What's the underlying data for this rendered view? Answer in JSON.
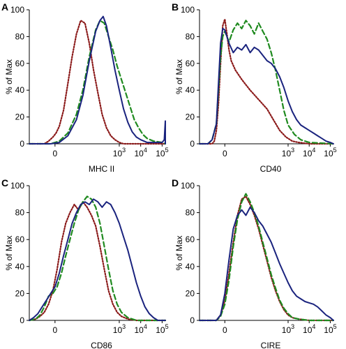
{
  "colors": {
    "isotype": "#8b1a1a",
    "treated": "#1f8a1f",
    "control": "#1a237e"
  },
  "chart_data": [
    {
      "type": "line",
      "panel": "A",
      "xlabel": "MHC II",
      "ylabel": "% of Max",
      "ylim": [
        0,
        100
      ],
      "yticks": [
        0,
        20,
        40,
        60,
        80,
        100
      ],
      "xlim": [
        -1.2,
        5.15
      ],
      "xticks": [
        {
          "pos": 0,
          "base": "0",
          "exp": ""
        },
        {
          "pos": 3,
          "base": "10",
          "exp": "3"
        },
        {
          "pos": 4,
          "base": "10",
          "exp": "4"
        },
        {
          "pos": 5,
          "base": "10",
          "exp": "5"
        }
      ],
      "series": [
        {
          "style": "isotype",
          "x": [
            -1.2,
            -0.5,
            -0.3,
            -0.1,
            0.05,
            0.2,
            0.4,
            0.6,
            0.8,
            1.0,
            1.2,
            1.4,
            1.6,
            1.8,
            2.0,
            2.2,
            2.4,
            2.6,
            2.8,
            3.0,
            3.2,
            3.5,
            4.0,
            5.15
          ],
          "y": [
            0,
            0,
            2,
            5,
            8,
            13,
            25,
            45,
            65,
            82,
            92,
            90,
            75,
            55,
            38,
            22,
            12,
            6,
            3,
            1,
            0,
            0,
            0,
            0
          ]
        },
        {
          "style": "treated",
          "x": [
            -1.2,
            -0.2,
            0.2,
            0.6,
            1.0,
            1.3,
            1.6,
            1.9,
            2.1,
            2.3,
            2.5,
            2.7,
            2.9,
            3.1,
            3.3,
            3.5,
            3.7,
            3.9,
            4.1,
            4.3,
            4.6,
            5.0,
            5.15
          ],
          "y": [
            0,
            0,
            2,
            8,
            22,
            40,
            65,
            85,
            92,
            90,
            80,
            70,
            58,
            48,
            38,
            28,
            18,
            12,
            7,
            4,
            2,
            1,
            0
          ]
        },
        {
          "style": "control",
          "x": [
            -1.2,
            -0.2,
            0.2,
            0.6,
            1.0,
            1.3,
            1.6,
            1.9,
            2.1,
            2.25,
            2.4,
            2.6,
            2.8,
            3.0,
            3.2,
            3.4,
            3.6,
            3.8,
            4.0,
            4.3,
            4.6,
            5.0,
            5.1,
            5.15,
            5.15
          ],
          "y": [
            0,
            0,
            1,
            6,
            18,
            36,
            62,
            84,
            92,
            95,
            88,
            72,
            55,
            40,
            26,
            16,
            9,
            5,
            3,
            1,
            1,
            1,
            3,
            17,
            0
          ]
        }
      ]
    },
    {
      "type": "line",
      "panel": "B",
      "xlabel": "CD40",
      "ylabel": "% of Max",
      "ylim": [
        0,
        100
      ],
      "yticks": [
        0,
        20,
        40,
        60,
        80,
        100
      ],
      "xlim": [
        -1.2,
        5.15
      ],
      "xticks": [
        {
          "pos": 0,
          "base": "0",
          "exp": ""
        },
        {
          "pos": 3,
          "base": "10",
          "exp": "3"
        },
        {
          "pos": 4,
          "base": "10",
          "exp": "4"
        },
        {
          "pos": 5,
          "base": "10",
          "exp": "5"
        }
      ],
      "series": [
        {
          "style": "isotype",
          "x": [
            -1.2,
            -0.6,
            -0.5,
            -0.4,
            -0.3,
            -0.2,
            -0.1,
            0,
            0.1,
            0.2,
            0.3,
            0.5,
            0.8,
            1.2,
            1.6,
            2.0,
            2.3,
            2.6,
            2.9,
            3.2,
            3.5,
            4.0,
            5.15
          ],
          "y": [
            0,
            0,
            2,
            10,
            30,
            60,
            88,
            93,
            82,
            70,
            62,
            55,
            48,
            40,
            33,
            26,
            18,
            10,
            5,
            2,
            1,
            0,
            0
          ]
        },
        {
          "style": "treated",
          "x": [
            -1.2,
            -0.8,
            -0.6,
            -0.4,
            -0.3,
            -0.2,
            -0.1,
            0,
            0.2,
            0.4,
            0.6,
            0.8,
            1.0,
            1.2,
            1.4,
            1.6,
            1.8,
            2.0,
            2.2,
            2.4,
            2.6,
            2.8,
            3.0,
            3.3,
            3.6,
            4.0,
            5.15
          ],
          "y": [
            0,
            0,
            3,
            15,
            40,
            65,
            80,
            84,
            76,
            85,
            90,
            86,
            92,
            88,
            82,
            90,
            84,
            78,
            68,
            55,
            40,
            25,
            14,
            7,
            3,
            1,
            0
          ]
        },
        {
          "style": "control",
          "x": [
            -1.2,
            -0.8,
            -0.6,
            -0.4,
            -0.3,
            -0.2,
            -0.1,
            0,
            0.2,
            0.4,
            0.6,
            0.8,
            1.0,
            1.2,
            1.4,
            1.6,
            1.8,
            2.0,
            2.2,
            2.4,
            2.6,
            2.8,
            3.0,
            3.2,
            3.4,
            3.6,
            3.8,
            4.0,
            4.2,
            4.4,
            4.6,
            4.8,
            5.0,
            5.15
          ],
          "y": [
            0,
            0,
            3,
            15,
            45,
            75,
            86,
            85,
            75,
            68,
            72,
            70,
            74,
            68,
            72,
            70,
            66,
            62,
            60,
            56,
            50,
            42,
            32,
            24,
            18,
            14,
            12,
            10,
            8,
            6,
            4,
            2,
            1,
            0
          ]
        }
      ]
    },
    {
      "type": "line",
      "panel": "C",
      "xlabel": "CD86",
      "ylabel": "% of Max",
      "ylim": [
        0,
        100
      ],
      "yticks": [
        0,
        20,
        40,
        60,
        80,
        100
      ],
      "xlim": [
        -1.2,
        5.15
      ],
      "xticks": [
        {
          "pos": 0,
          "base": "0",
          "exp": ""
        },
        {
          "pos": 3,
          "base": "10",
          "exp": "3"
        },
        {
          "pos": 4,
          "base": "10",
          "exp": "4"
        },
        {
          "pos": 5,
          "base": "10",
          "exp": "5"
        }
      ],
      "series": [
        {
          "style": "isotype",
          "x": [
            -1.2,
            -0.9,
            -0.7,
            -0.5,
            -0.3,
            -0.1,
            0.1,
            0.3,
            0.5,
            0.7,
            0.9,
            1.1,
            1.3,
            1.5,
            1.7,
            1.9,
            2.1,
            2.3,
            2.5,
            2.7,
            2.9,
            3.1,
            3.4,
            3.8,
            5.15
          ],
          "y": [
            0,
            1,
            3,
            6,
            12,
            22,
            38,
            58,
            72,
            80,
            86,
            82,
            88,
            84,
            78,
            70,
            55,
            38,
            22,
            12,
            6,
            3,
            1,
            0,
            0
          ]
        },
        {
          "style": "treated",
          "x": [
            -1.2,
            -0.9,
            -0.7,
            -0.5,
            -0.3,
            -0.1,
            0.1,
            0.3,
            0.5,
            0.7,
            0.9,
            1.1,
            1.3,
            1.5,
            1.7,
            1.9,
            2.1,
            2.3,
            2.5,
            2.7,
            2.9,
            3.1,
            3.4,
            3.8,
            5.15
          ],
          "y": [
            0,
            1,
            4,
            10,
            18,
            20,
            25,
            35,
            48,
            60,
            72,
            82,
            88,
            92,
            90,
            84,
            72,
            55,
            38,
            22,
            12,
            6,
            2,
            0,
            0
          ]
        },
        {
          "style": "control",
          "x": [
            -1.2,
            -1.0,
            -0.8,
            -0.6,
            -0.4,
            -0.2,
            0,
            0.2,
            0.4,
            0.6,
            0.8,
            1.0,
            1.2,
            1.4,
            1.6,
            1.8,
            2.0,
            2.2,
            2.4,
            2.6,
            2.8,
            3.0,
            3.2,
            3.4,
            3.6,
            3.8,
            4.0,
            4.2,
            4.4,
            4.6,
            4.8,
            5.15
          ],
          "y": [
            0,
            2,
            5,
            10,
            15,
            20,
            25,
            35,
            48,
            60,
            72,
            80,
            86,
            88,
            86,
            90,
            88,
            84,
            88,
            86,
            80,
            72,
            62,
            52,
            40,
            28,
            18,
            10,
            5,
            2,
            0,
            0
          ]
        }
      ]
    },
    {
      "type": "line",
      "panel": "D",
      "xlabel": "CIRE",
      "ylabel": "% of Max",
      "ylim": [
        0,
        100
      ],
      "yticks": [
        0,
        20,
        40,
        60,
        80,
        100
      ],
      "xlim": [
        -1.2,
        5.15
      ],
      "xticks": [
        {
          "pos": 0,
          "base": "0",
          "exp": ""
        },
        {
          "pos": 3,
          "base": "10",
          "exp": "3"
        },
        {
          "pos": 4,
          "base": "10",
          "exp": "4"
        },
        {
          "pos": 5,
          "base": "10",
          "exp": "5"
        }
      ],
      "series": [
        {
          "style": "isotype",
          "x": [
            -1.2,
            -0.4,
            -0.2,
            0,
            0.2,
            0.4,
            0.6,
            0.8,
            1.0,
            1.2,
            1.4,
            1.6,
            1.8,
            2.0,
            2.2,
            2.4,
            2.6,
            2.8,
            3.0,
            3.2,
            3.5,
            4.0,
            5.15
          ],
          "y": [
            0,
            0,
            4,
            15,
            35,
            58,
            78,
            90,
            92,
            86,
            78,
            68,
            56,
            44,
            32,
            22,
            14,
            8,
            4,
            2,
            1,
            0,
            0
          ]
        },
        {
          "style": "treated",
          "x": [
            -1.2,
            -0.4,
            -0.2,
            0,
            0.2,
            0.4,
            0.6,
            0.8,
            1.0,
            1.2,
            1.4,
            1.6,
            1.8,
            2.0,
            2.2,
            2.4,
            2.6,
            2.8,
            3.0,
            3.2,
            3.5,
            4.0,
            5.15
          ],
          "y": [
            0,
            0,
            3,
            12,
            30,
            55,
            75,
            88,
            94,
            88,
            80,
            70,
            58,
            46,
            34,
            24,
            15,
            9,
            5,
            2,
            1,
            0,
            0
          ]
        },
        {
          "style": "control",
          "x": [
            -1.2,
            -0.4,
            -0.2,
            0,
            0.2,
            0.4,
            0.6,
            0.8,
            1.0,
            1.2,
            1.4,
            1.6,
            1.8,
            2.0,
            2.2,
            2.4,
            2.6,
            2.8,
            3.0,
            3.2,
            3.4,
            3.6,
            3.8,
            4.0,
            4.2,
            4.4,
            4.6,
            4.8,
            5.0,
            5.15
          ],
          "y": [
            0,
            0,
            4,
            20,
            45,
            68,
            78,
            82,
            78,
            84,
            80,
            74,
            70,
            64,
            58,
            50,
            42,
            35,
            28,
            22,
            18,
            16,
            14,
            13,
            12,
            10,
            7,
            4,
            2,
            0
          ]
        }
      ]
    }
  ]
}
